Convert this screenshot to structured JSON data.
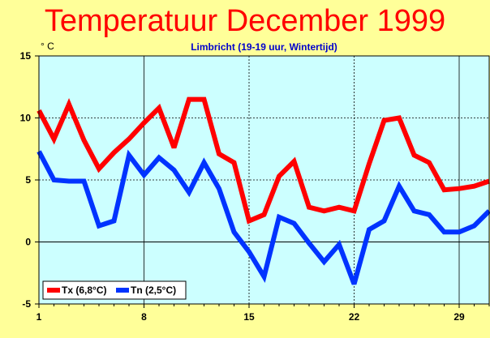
{
  "title": "Temperatuur December 1999",
  "subtitle": "Limbricht (19-19 uur, Wintertijd)",
  "colors": {
    "background": "#ffff99",
    "plot_background": "#ccffff",
    "title": "#ff0000",
    "subtitle": "#0000cc",
    "tx": "#ff0000",
    "tn": "#0033ff"
  },
  "chart_data": {
    "type": "line",
    "title": "Temperatuur December 1999",
    "subtitle": "Limbricht (19-19 uur, Wintertijd)",
    "ylabel": "° C",
    "xlabel": "",
    "xlim": [
      1,
      31
    ],
    "ylim": [
      -5,
      15
    ],
    "x_ticks": [
      1,
      8,
      15,
      22,
      29
    ],
    "y_ticks": [
      -5,
      0,
      5,
      10,
      15
    ],
    "grid": "dashed horizontal and vertical at major ticks, solid line at 0",
    "legend_position": "bottom-left",
    "x": [
      1,
      2,
      3,
      4,
      5,
      6,
      7,
      8,
      9,
      10,
      11,
      12,
      13,
      14,
      15,
      16,
      17,
      18,
      19,
      20,
      21,
      22,
      23,
      24,
      25,
      26,
      27,
      28,
      29,
      30,
      31
    ],
    "series": [
      {
        "name": "Tx (6,8°C)",
        "color": "#ff0000",
        "values": [
          10.6,
          8.3,
          11.1,
          8.2,
          5.9,
          7.2,
          8.3,
          9.6,
          10.8,
          7.6,
          11.5,
          11.5,
          7.1,
          6.4,
          1.7,
          2.2,
          5.3,
          6.5,
          2.8,
          2.5,
          2.8,
          2.5,
          6.3,
          9.8,
          10.0,
          7.0,
          6.4,
          4.2,
          4.3,
          4.5,
          4.9
        ]
      },
      {
        "name": "Tn (2,5°C)",
        "color": "#0033ff",
        "values": [
          7.3,
          5.0,
          4.9,
          4.9,
          1.3,
          1.7,
          7.0,
          5.4,
          6.8,
          5.8,
          4.0,
          6.4,
          4.3,
          0.8,
          -0.8,
          -2.8,
          2.0,
          1.5,
          -0.1,
          -1.6,
          -0.2,
          -3.4,
          1.0,
          1.7,
          4.5,
          2.5,
          2.2,
          0.8,
          0.8,
          1.3,
          2.5
        ]
      }
    ]
  }
}
